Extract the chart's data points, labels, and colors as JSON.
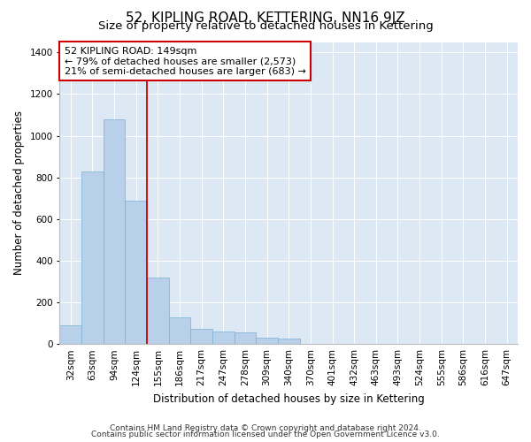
{
  "title": "52, KIPLING ROAD, KETTERING, NN16 9JZ",
  "subtitle": "Size of property relative to detached houses in Kettering",
  "xlabel": "Distribution of detached houses by size in Kettering",
  "ylabel": "Number of detached properties",
  "footnote1": "Contains HM Land Registry data © Crown copyright and database right 2024.",
  "footnote2": "Contains public sector information licensed under the Open Government Licence v3.0.",
  "categories": [
    "32sqm",
    "63sqm",
    "94sqm",
    "124sqm",
    "155sqm",
    "186sqm",
    "217sqm",
    "247sqm",
    "278sqm",
    "309sqm",
    "340sqm",
    "370sqm",
    "401sqm",
    "432sqm",
    "463sqm",
    "493sqm",
    "524sqm",
    "555sqm",
    "586sqm",
    "616sqm",
    "647sqm"
  ],
  "values": [
    90,
    830,
    1080,
    690,
    320,
    130,
    75,
    60,
    55,
    30,
    25,
    0,
    0,
    0,
    0,
    0,
    0,
    0,
    0,
    0,
    0
  ],
  "bar_color": "#b8d0ea",
  "bar_edge_color": "#7aafd4",
  "background_color": "#dce9f5",
  "grid_color": "#ffffff",
  "vline_color": "#cc0000",
  "annotation_line1": "52 KIPLING ROAD: 149sqm",
  "annotation_line2": "← 79% of detached houses are smaller (2,573)",
  "annotation_line3": "21% of semi-detached houses are larger (683) →",
  "annotation_box_color": "#ffffff",
  "annotation_box_edge": "#cc0000",
  "ylim": [
    0,
    1450
  ],
  "yticks": [
    0,
    200,
    400,
    600,
    800,
    1000,
    1200,
    1400
  ],
  "title_fontsize": 11,
  "subtitle_fontsize": 9.5,
  "annotation_fontsize": 8,
  "axis_label_fontsize": 8.5,
  "tick_fontsize": 7.5,
  "footnote_fontsize": 6.5,
  "vline_x_index": 4
}
